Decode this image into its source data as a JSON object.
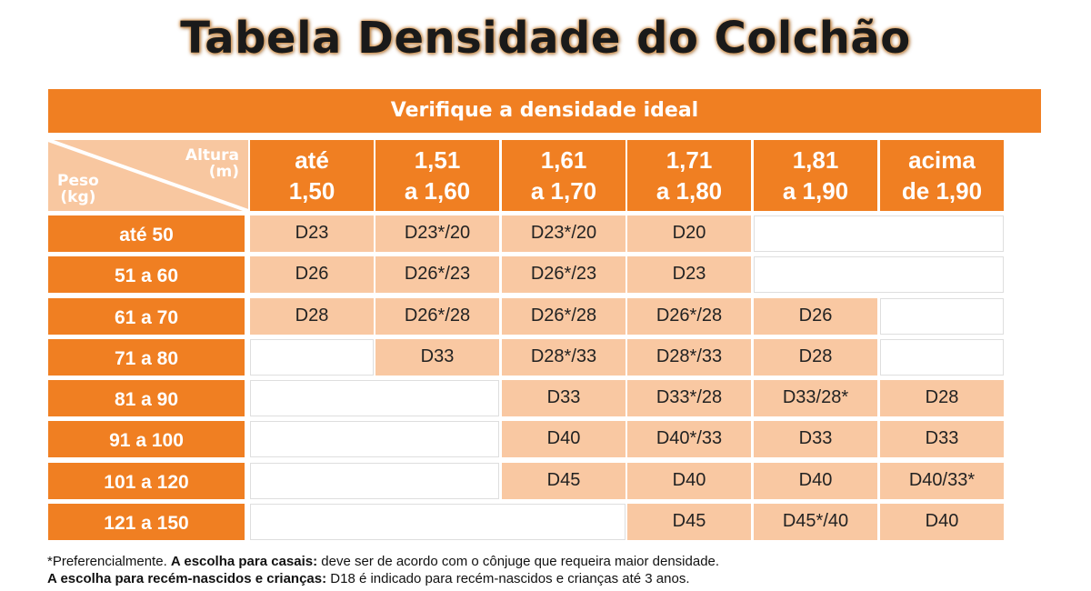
{
  "title": "Tabela Densidade do Colchão",
  "banner": "Verifique a densidade ideal",
  "corner": {
    "altura": "Altura",
    "altura_unit": "(m)",
    "peso": "Peso",
    "peso_unit": "(kg)"
  },
  "columns": [
    {
      "line1": "até",
      "line2": "1,50"
    },
    {
      "line1": "1,51",
      "line2": "a 1,60"
    },
    {
      "line1": "1,61",
      "line2": "a 1,70"
    },
    {
      "line1": "1,71",
      "line2": "a 1,80"
    },
    {
      "line1": "1,81",
      "line2": "a 1,90"
    },
    {
      "line1": "acima",
      "line2": "de 1,90"
    }
  ],
  "rows": [
    {
      "label": "até 50",
      "cells": [
        "D23",
        "D23*/20",
        "D23*/20",
        "D20",
        "",
        ""
      ]
    },
    {
      "label": "51 a 60",
      "cells": [
        "D26",
        "D26*/23",
        "D26*/23",
        "D23",
        "",
        ""
      ]
    },
    {
      "label": "61 a 70",
      "cells": [
        "D28",
        "D26*/28",
        "D26*/28",
        "D26*/28",
        "D26",
        ""
      ]
    },
    {
      "label": "71 a 80",
      "cells": [
        "",
        "D33",
        "D28*/33",
        "D28*/33",
        "D28",
        ""
      ]
    },
    {
      "label": "81 a 90",
      "cells": [
        "",
        "",
        "D33",
        "D33*/28",
        "D33/28*",
        "D28"
      ]
    },
    {
      "label": "91 a 100",
      "cells": [
        "",
        "",
        "D40",
        "D40*/33",
        "D33",
        "D33"
      ]
    },
    {
      "label": "101 a 120",
      "cells": [
        "",
        "",
        "D45",
        "D40",
        "D40",
        "D40/33*"
      ]
    },
    {
      "label": "121 a 150",
      "cells": [
        "",
        "",
        "",
        "D45",
        "D45*/40",
        "D40"
      ]
    }
  ],
  "footer": {
    "line1_a": "*Preferencialmente. ",
    "line1_b": "A escolha para casais:",
    "line1_c": " deve ser de acordo com o cônjuge que requeira maior densidade.",
    "line2_a": "A escolha para recém-nascidos e crianças:",
    "line2_b": " D18 é indicado para recém-nascidos e crianças até 3 anos."
  }
}
